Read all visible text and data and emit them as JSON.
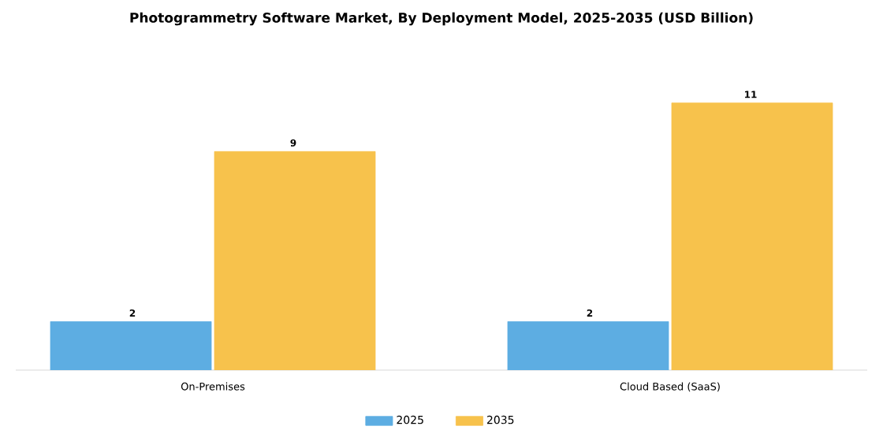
{
  "chart_data": {
    "type": "bar",
    "title": "Photogrammetry Software Market, By Deployment Model, 2025-2035 (USD Billion)",
    "categories": [
      "On-Premises",
      "Cloud Based (SaaS)"
    ],
    "series": [
      {
        "name": "2025",
        "color": "#5dade2",
        "values": [
          2,
          2
        ]
      },
      {
        "name": "2035",
        "color": "#f7c24c",
        "values": [
          9,
          11
        ]
      }
    ],
    "data_labels": true,
    "legend": "bottom"
  }
}
